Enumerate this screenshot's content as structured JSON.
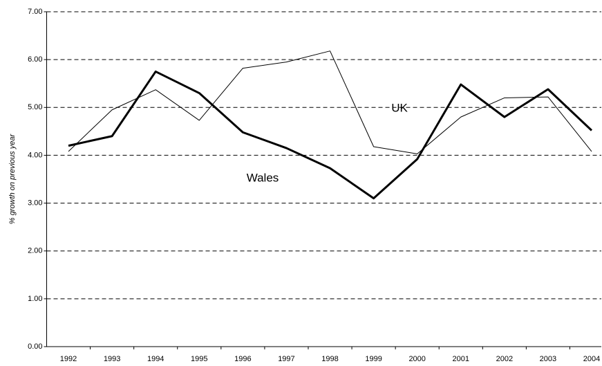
{
  "chart_data": {
    "type": "line",
    "ylabel": "% growth on previous year",
    "categories": [
      "1992",
      "1993",
      "1994",
      "1995",
      "1996",
      "1997",
      "1998",
      "1999",
      "2000",
      "2001",
      "2002",
      "2003",
      "2004"
    ],
    "series": [
      {
        "name": "UK",
        "color": "#000000",
        "width": 1,
        "values": [
          4.08,
          4.95,
          5.37,
          4.73,
          5.82,
          5.95,
          6.18,
          4.18,
          4.03,
          4.8,
          5.2,
          5.22,
          4.08
        ]
      },
      {
        "name": "Wales",
        "color": "#000000",
        "width": 3,
        "values": [
          4.2,
          4.4,
          5.75,
          5.3,
          4.48,
          4.15,
          3.73,
          3.1,
          3.92,
          5.48,
          4.8,
          5.38,
          4.52
        ]
      }
    ],
    "ylim": [
      0,
      7
    ],
    "yticks": [
      {
        "value": 0,
        "label": "0.00"
      },
      {
        "value": 1,
        "label": "1.00"
      },
      {
        "value": 2,
        "label": "2.00"
      },
      {
        "value": 3,
        "label": "3.00"
      },
      {
        "value": 4,
        "label": "4.00"
      },
      {
        "value": 5,
        "label": "5.00"
      },
      {
        "value": 6,
        "label": "6.00"
      },
      {
        "value": 7,
        "label": "7.00"
      }
    ],
    "grid": true
  }
}
